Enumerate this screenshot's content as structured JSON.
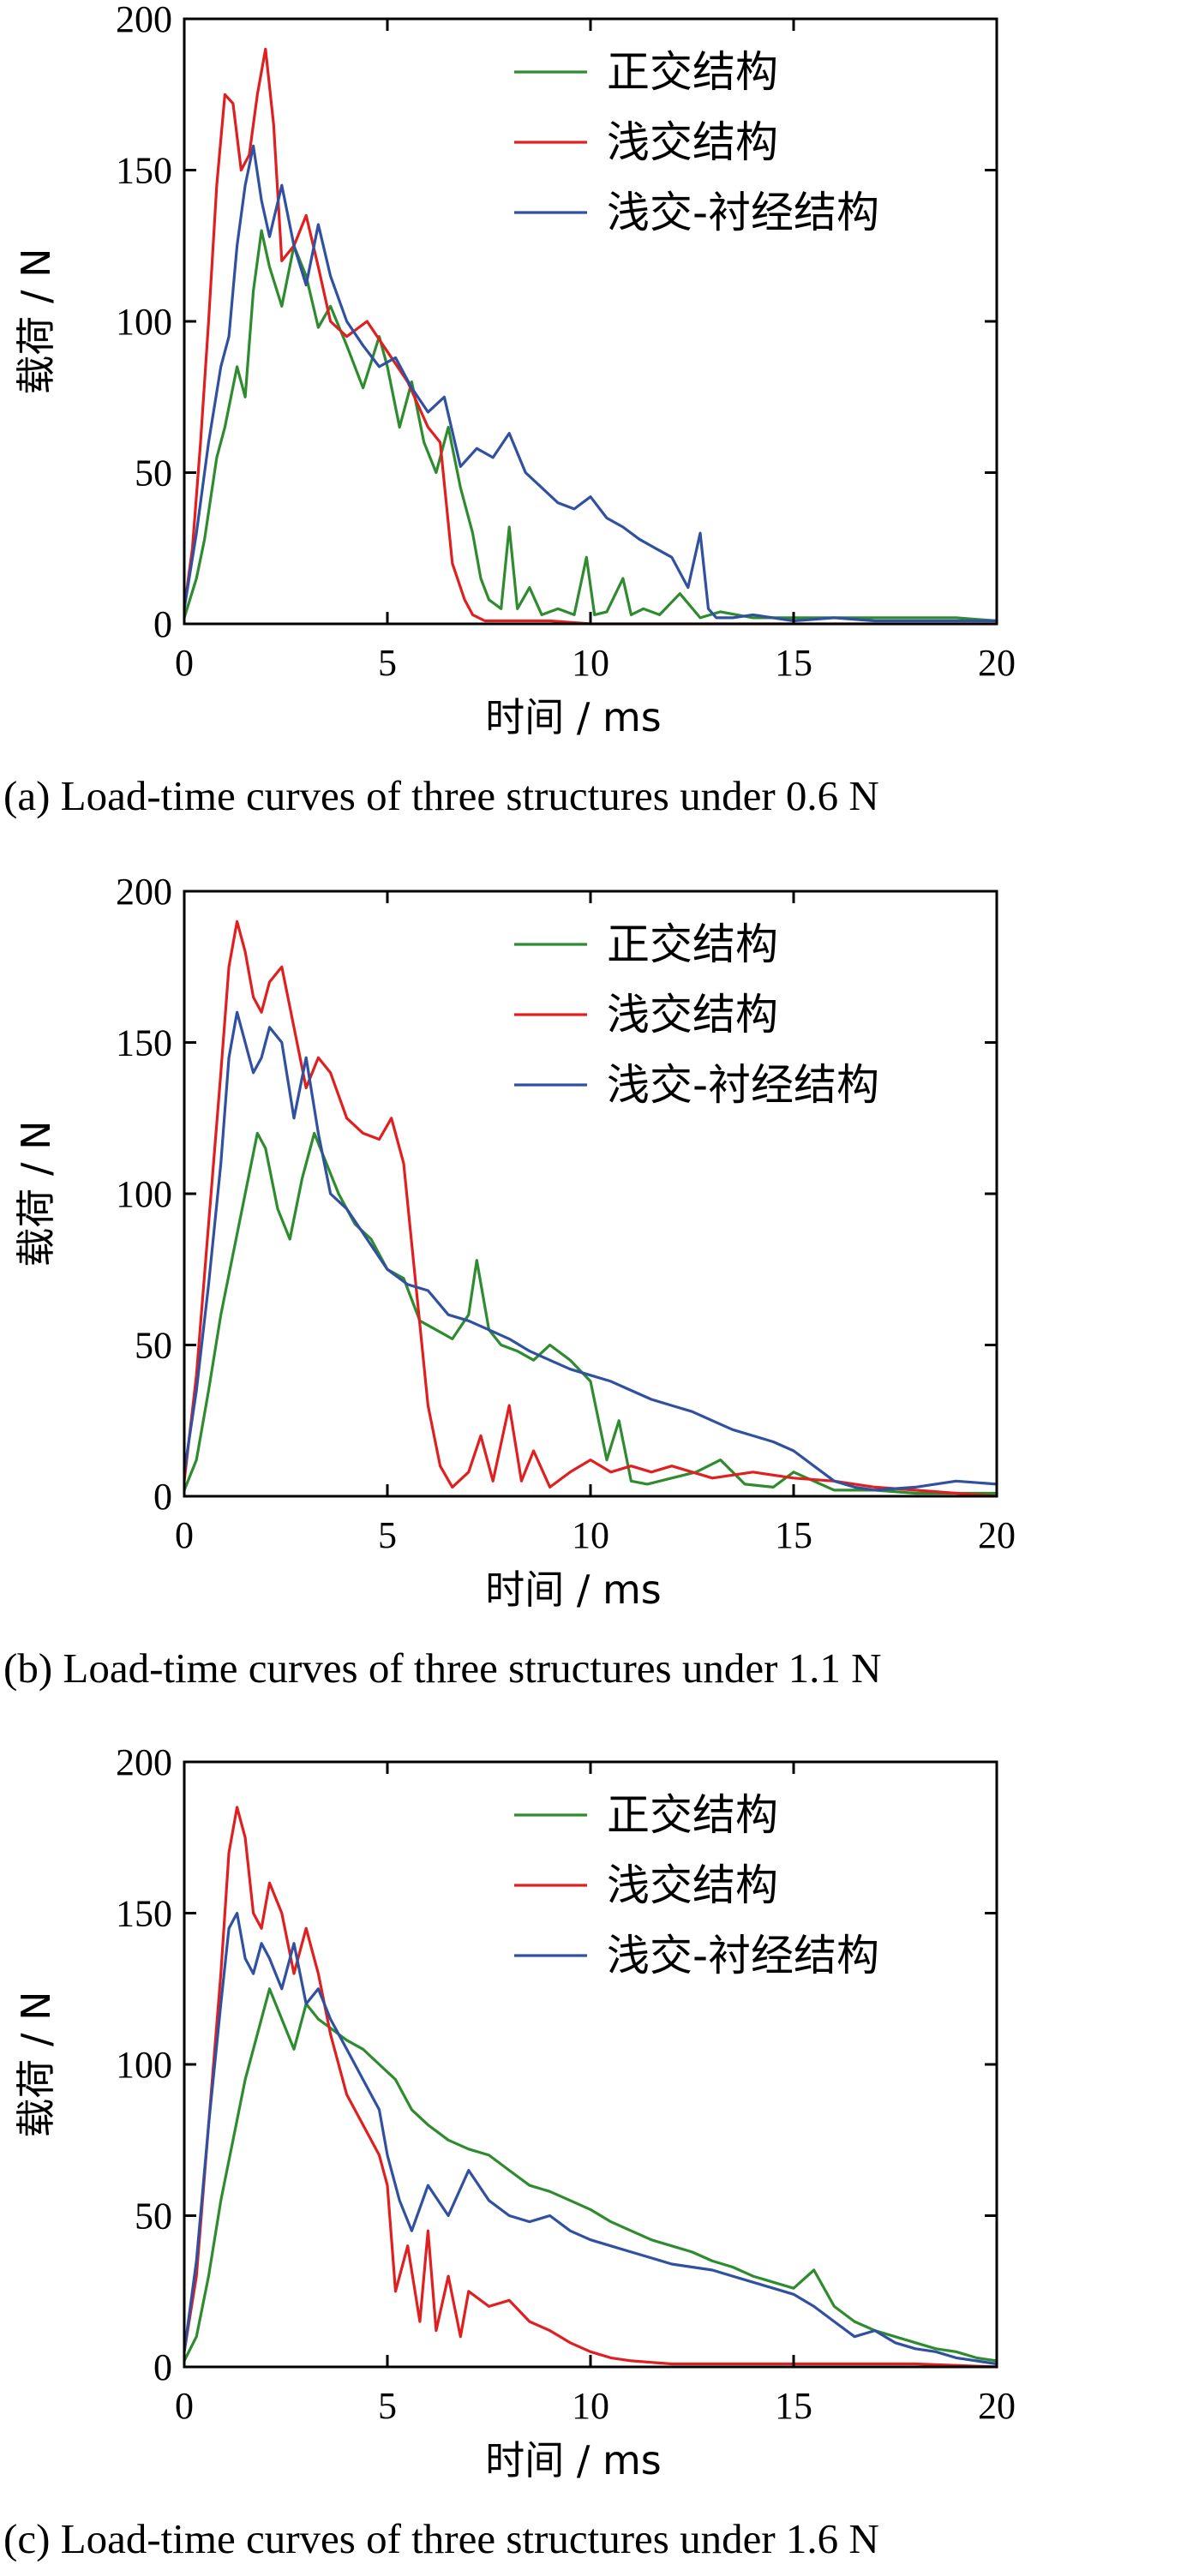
{
  "chart_data": [
    {
      "type": "line",
      "caption": "(a) Load-time curves of three structures under 0.6 N",
      "xlabel": "时间 / ms",
      "ylabel": "载荷 / N",
      "xlim": [
        0,
        20
      ],
      "ylim": [
        0,
        200
      ],
      "xticks": [
        "0",
        "5",
        "10",
        "15",
        "20"
      ],
      "yticks": [
        "0",
        "50",
        "100",
        "150",
        "200"
      ],
      "grid": false,
      "legend": "top-right",
      "series": [
        {
          "name": "正交结构",
          "color": "#2e8b2e",
          "x": [
            0,
            0.3,
            0.5,
            0.8,
            1.0,
            1.3,
            1.5,
            1.7,
            1.9,
            2.1,
            2.4,
            2.7,
            3.0,
            3.3,
            3.6,
            4.0,
            4.4,
            4.8,
            5.0,
            5.3,
            5.6,
            5.9,
            6.2,
            6.5,
            6.8,
            7.1,
            7.3,
            7.5,
            7.8,
            8.0,
            8.2,
            8.5,
            8.8,
            9.2,
            9.6,
            9.9,
            10.1,
            10.4,
            10.8,
            11.0,
            11.3,
            11.7,
            12.2,
            12.7,
            13.2,
            14,
            15,
            16,
            17,
            18,
            19,
            20
          ],
          "y": [
            2,
            15,
            28,
            55,
            65,
            85,
            75,
            110,
            130,
            118,
            105,
            125,
            115,
            98,
            105,
            92,
            78,
            95,
            85,
            65,
            80,
            60,
            50,
            65,
            45,
            30,
            15,
            8,
            5,
            32,
            5,
            12,
            3,
            5,
            3,
            22,
            3,
            4,
            15,
            3,
            5,
            3,
            10,
            2,
            4,
            2,
            2,
            2,
            2,
            2,
            2,
            1
          ]
        },
        {
          "name": "浅交结构",
          "color": "#e02020",
          "x": [
            0,
            0.2,
            0.4,
            0.6,
            0.8,
            1.0,
            1.2,
            1.4,
            1.6,
            1.8,
            2.0,
            2.2,
            2.4,
            2.7,
            3.0,
            3.3,
            3.6,
            4.0,
            4.5,
            5.0,
            5.5,
            6.0,
            6.3,
            6.6,
            6.9,
            7.1,
            7.4,
            8,
            9,
            10,
            12,
            15,
            20
          ],
          "y": [
            5,
            25,
            60,
            100,
            145,
            175,
            172,
            150,
            155,
            175,
            190,
            165,
            120,
            125,
            135,
            118,
            100,
            95,
            100,
            90,
            80,
            65,
            60,
            20,
            8,
            3,
            1,
            1,
            1,
            0,
            0,
            0,
            0
          ]
        },
        {
          "name": "浅交-衬经结构",
          "color": "#3050a0",
          "x": [
            0,
            0.3,
            0.6,
            0.9,
            1.1,
            1.3,
            1.5,
            1.7,
            1.9,
            2.1,
            2.4,
            2.7,
            3.0,
            3.3,
            3.6,
            4.0,
            4.4,
            4.8,
            5.2,
            5.6,
            6.0,
            6.4,
            6.8,
            7.2,
            7.6,
            8.0,
            8.4,
            8.8,
            9.2,
            9.6,
            10.0,
            10.4,
            10.8,
            11.2,
            11.6,
            12.0,
            12.4,
            12.7,
            12.9,
            13.1,
            13.5,
            14,
            15,
            16,
            17,
            18,
            19,
            20
          ],
          "y": [
            5,
            30,
            60,
            85,
            95,
            125,
            145,
            158,
            140,
            128,
            145,
            125,
            112,
            132,
            115,
            100,
            92,
            85,
            88,
            78,
            70,
            75,
            52,
            58,
            55,
            63,
            50,
            45,
            40,
            38,
            42,
            35,
            32,
            28,
            25,
            22,
            12,
            30,
            5,
            2,
            2,
            3,
            1,
            2,
            1,
            1,
            1,
            1
          ]
        }
      ]
    },
    {
      "type": "line",
      "caption": "(b) Load-time curves of three structures under 1.1 N",
      "xlabel": "时间 / ms",
      "ylabel": "载荷 / N",
      "xlim": [
        0,
        20
      ],
      "ylim": [
        0,
        200
      ],
      "xticks": [
        "0",
        "5",
        "10",
        "15",
        "20"
      ],
      "yticks": [
        "0",
        "50",
        "100",
        "150",
        "200"
      ],
      "grid": false,
      "legend": "top-right",
      "series": [
        {
          "name": "正交结构",
          "color": "#2e8b2e",
          "x": [
            0,
            0.3,
            0.6,
            0.9,
            1.2,
            1.5,
            1.8,
            2.0,
            2.3,
            2.6,
            2.9,
            3.2,
            3.5,
            3.8,
            4.2,
            4.6,
            5.0,
            5.4,
            5.8,
            6.2,
            6.6,
            7.0,
            7.2,
            7.5,
            7.8,
            8.2,
            8.6,
            9.0,
            9.5,
            10.0,
            10.4,
            10.7,
            11.0,
            11.4,
            12.0,
            12.6,
            13.2,
            13.8,
            14.5,
            15,
            16,
            17,
            18,
            20
          ],
          "y": [
            2,
            12,
            35,
            60,
            80,
            100,
            120,
            115,
            95,
            85,
            105,
            120,
            110,
            100,
            90,
            85,
            75,
            72,
            58,
            55,
            52,
            60,
            78,
            55,
            50,
            48,
            45,
            50,
            45,
            38,
            12,
            25,
            5,
            4,
            6,
            8,
            12,
            4,
            3,
            8,
            2,
            2,
            1,
            1
          ]
        },
        {
          "name": "浅交结构",
          "color": "#e02020",
          "x": [
            0,
            0.3,
            0.6,
            0.9,
            1.1,
            1.3,
            1.5,
            1.7,
            1.9,
            2.1,
            2.4,
            2.7,
            3.0,
            3.3,
            3.6,
            4.0,
            4.4,
            4.8,
            5.1,
            5.4,
            5.7,
            6.0,
            6.3,
            6.6,
            7.0,
            7.3,
            7.6,
            8.0,
            8.3,
            8.6,
            9.0,
            9.5,
            10.0,
            10.5,
            11.0,
            11.5,
            12.0,
            13.0,
            14.0,
            15.0,
            16,
            17,
            18,
            19,
            20
          ],
          "y": [
            5,
            40,
            90,
            140,
            175,
            190,
            180,
            165,
            160,
            170,
            175,
            155,
            135,
            145,
            140,
            125,
            120,
            118,
            125,
            110,
            70,
            30,
            10,
            3,
            8,
            20,
            5,
            30,
            5,
            15,
            3,
            8,
            12,
            8,
            10,
            8,
            10,
            6,
            8,
            6,
            5,
            3,
            2,
            1,
            0
          ]
        },
        {
          "name": "浅交-衬经结构",
          "color": "#3050a0",
          "x": [
            0,
            0.3,
            0.6,
            0.9,
            1.1,
            1.3,
            1.5,
            1.7,
            1.9,
            2.1,
            2.4,
            2.7,
            3.0,
            3.3,
            3.6,
            4.0,
            4.5,
            5.0,
            5.5,
            6.0,
            6.5,
            7.0,
            7.5,
            8.0,
            8.5,
            9.0,
            9.5,
            10.0,
            10.5,
            11.0,
            11.5,
            12.0,
            12.5,
            13.0,
            13.5,
            14.0,
            14.5,
            15.0,
            15.5,
            16.0,
            16.5,
            17,
            18,
            19,
            20
          ],
          "y": [
            8,
            35,
            70,
            110,
            145,
            160,
            150,
            140,
            145,
            155,
            150,
            125,
            145,
            120,
            100,
            95,
            85,
            75,
            70,
            68,
            60,
            58,
            55,
            52,
            48,
            45,
            42,
            40,
            38,
            35,
            32,
            30,
            28,
            25,
            22,
            20,
            18,
            15,
            10,
            5,
            3,
            2,
            3,
            5,
            4
          ]
        }
      ]
    },
    {
      "type": "line",
      "caption": "(c) Load-time curves of three structures under 1.6 N",
      "xlabel": "时间 / ms",
      "ylabel": "载荷 / N",
      "xlim": [
        0,
        20
      ],
      "ylim": [
        0,
        200
      ],
      "xticks": [
        "0",
        "5",
        "10",
        "15",
        "20"
      ],
      "yticks": [
        "0",
        "50",
        "100",
        "150",
        "200"
      ],
      "grid": false,
      "legend": "top-right",
      "series": [
        {
          "name": "正交结构",
          "color": "#2e8b2e",
          "x": [
            0,
            0.3,
            0.6,
            0.9,
            1.2,
            1.5,
            1.8,
            2.1,
            2.4,
            2.7,
            3.0,
            3.3,
            3.6,
            4.0,
            4.4,
            4.8,
            5.2,
            5.6,
            6.0,
            6.5,
            7.0,
            7.5,
            8.0,
            8.5,
            9.0,
            9.5,
            10.0,
            10.5,
            11.0,
            11.5,
            12.0,
            12.5,
            13.0,
            13.5,
            14.0,
            14.5,
            15.0,
            15.5,
            16.0,
            16.5,
            17.0,
            17.5,
            18.0,
            18.5,
            19.0,
            19.5,
            20
          ],
          "y": [
            2,
            10,
            30,
            55,
            75,
            95,
            110,
            125,
            115,
            105,
            120,
            115,
            112,
            108,
            105,
            100,
            95,
            85,
            80,
            75,
            72,
            70,
            65,
            60,
            58,
            55,
            52,
            48,
            45,
            42,
            40,
            38,
            35,
            33,
            30,
            28,
            26,
            32,
            20,
            15,
            12,
            10,
            8,
            6,
            5,
            3,
            2
          ]
        },
        {
          "name": "浅交结构",
          "color": "#e02020",
          "x": [
            0,
            0.3,
            0.6,
            0.9,
            1.1,
            1.3,
            1.5,
            1.7,
            1.9,
            2.1,
            2.4,
            2.7,
            3.0,
            3.3,
            3.6,
            4.0,
            4.4,
            4.8,
            5.0,
            5.2,
            5.5,
            5.8,
            6.0,
            6.2,
            6.5,
            6.8,
            7.0,
            7.5,
            8.0,
            8.5,
            9.0,
            9.5,
            10.0,
            10.5,
            11,
            12,
            14,
            16,
            18,
            20
          ],
          "y": [
            5,
            30,
            80,
            130,
            170,
            185,
            175,
            150,
            145,
            160,
            150,
            130,
            145,
            130,
            110,
            90,
            80,
            70,
            60,
            25,
            40,
            15,
            45,
            12,
            30,
            10,
            25,
            20,
            22,
            15,
            12,
            8,
            5,
            3,
            2,
            1,
            1,
            1,
            1,
            0
          ]
        },
        {
          "name": "浅交-衬经结构",
          "color": "#3050a0",
          "x": [
            0,
            0.3,
            0.6,
            0.9,
            1.1,
            1.3,
            1.5,
            1.7,
            1.9,
            2.1,
            2.4,
            2.7,
            3.0,
            3.3,
            3.6,
            4.0,
            4.4,
            4.8,
            5.0,
            5.3,
            5.6,
            6.0,
            6.5,
            7.0,
            7.5,
            8.0,
            8.5,
            9.0,
            9.5,
            10.0,
            10.5,
            11.0,
            11.5,
            12.0,
            12.5,
            13.0,
            13.5,
            14.0,
            14.5,
            15.0,
            15.5,
            16.0,
            16.5,
            17.0,
            17.5,
            18.0,
            18.5,
            19.0,
            19.5,
            20
          ],
          "y": [
            5,
            35,
            80,
            120,
            145,
            150,
            135,
            130,
            140,
            135,
            125,
            140,
            120,
            125,
            115,
            105,
            95,
            85,
            70,
            55,
            45,
            60,
            50,
            65,
            55,
            50,
            48,
            50,
            45,
            42,
            40,
            38,
            36,
            34,
            33,
            32,
            30,
            28,
            26,
            24,
            20,
            15,
            10,
            12,
            8,
            6,
            5,
            3,
            2,
            1
          ]
        }
      ]
    }
  ]
}
